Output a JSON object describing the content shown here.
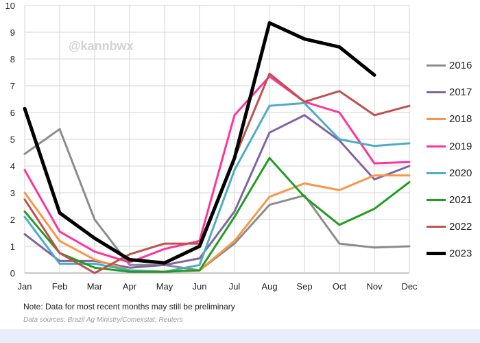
{
  "watermark": "@kannbwx",
  "note": "Note: Data for most recent months may still be preliminary",
  "source": "Data sources: Brazil Ag Ministry/Comexstat; Reuters",
  "chart_data": {
    "type": "line",
    "categories": [
      "Jan",
      "Feb",
      "Mar",
      "Apr",
      "May",
      "Jun",
      "Jul",
      "Aug",
      "Sep",
      "Oct",
      "Nov",
      "Dec"
    ],
    "ylim": [
      0,
      10
    ],
    "yticks": [
      "0",
      "1",
      "2",
      "3",
      "4",
      "5",
      "6",
      "7",
      "8",
      "9",
      "10"
    ],
    "grid": true,
    "legend": "right",
    "series": [
      {
        "name": "2016",
        "color": "#8c8c8c",
        "width": 3,
        "values": [
          4.45,
          5.38,
          2.0,
          0.3,
          0.3,
          0.1,
          1.1,
          2.55,
          2.9,
          1.1,
          0.95,
          1.0
        ]
      },
      {
        "name": "2017",
        "color": "#8064a2",
        "width": 3,
        "values": [
          1.45,
          0.45,
          0.45,
          0.2,
          0.3,
          0.55,
          2.3,
          5.25,
          5.9,
          4.95,
          3.5,
          4.0
        ]
      },
      {
        "name": "2018",
        "color": "#f79646",
        "width": 3,
        "values": [
          3.0,
          1.2,
          0.5,
          0.1,
          0.05,
          0.1,
          1.2,
          2.85,
          3.35,
          3.1,
          3.65,
          3.65
        ]
      },
      {
        "name": "2019",
        "color": "#ff3399",
        "width": 3,
        "values": [
          3.85,
          1.55,
          0.8,
          0.4,
          0.9,
          1.2,
          5.9,
          7.35,
          6.4,
          6.0,
          4.1,
          4.15
        ]
      },
      {
        "name": "2020",
        "color": "#4bacc6",
        "width": 3,
        "values": [
          2.1,
          0.35,
          0.35,
          0.1,
          0.05,
          0.3,
          3.85,
          6.25,
          6.35,
          5.0,
          4.75,
          4.85
        ]
      },
      {
        "name": "2021",
        "color": "#1e9e1e",
        "width": 3,
        "values": [
          2.3,
          0.75,
          0.2,
          0.05,
          0.05,
          0.1,
          2.1,
          4.3,
          2.85,
          1.8,
          2.4,
          3.4
        ]
      },
      {
        "name": "2022",
        "color": "#c0504d",
        "width": 3,
        "values": [
          2.75,
          0.75,
          0.0,
          0.7,
          1.1,
          1.1,
          4.3,
          7.45,
          6.4,
          6.8,
          5.9,
          6.25
        ]
      },
      {
        "name": "2023",
        "color": "#000000",
        "width": 5,
        "values": [
          6.15,
          2.25,
          1.3,
          0.5,
          0.38,
          1.0,
          4.3,
          9.35,
          8.75,
          8.45,
          7.4,
          null
        ]
      }
    ]
  }
}
